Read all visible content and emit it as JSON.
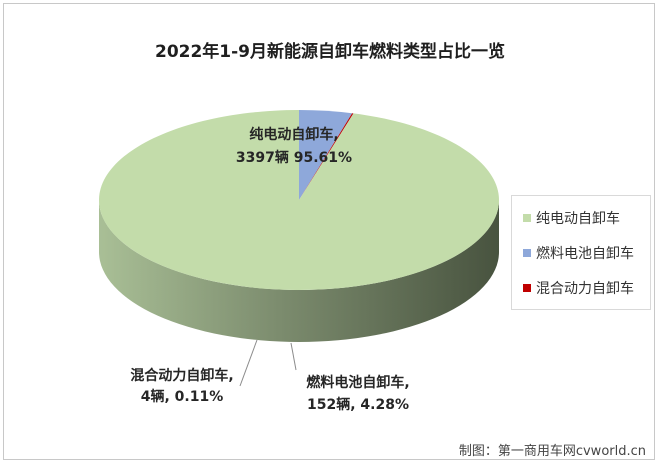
{
  "chart_data": {
    "type": "pie",
    "title": "2022年1-9月新能源自卸车燃料类型占比一览",
    "slices": [
      {
        "name": "纯电动自卸车",
        "value": 3397,
        "percent": 95.61,
        "label_line1": "纯电动自卸车,",
        "label_line2": "3397辆 95.61%",
        "color": "#c3dcaa"
      },
      {
        "name": "燃料电池自卸车",
        "value": 152,
        "percent": 4.28,
        "label_line1": "燃料电池自卸车,",
        "label_line2": "152辆, 4.28%",
        "color": "#8ea8da"
      },
      {
        "name": "混合动力自卸车",
        "value": 4,
        "percent": 0.11,
        "label_line1": "混合动力自卸车,",
        "label_line2": "4辆, 0.11%",
        "color": "#c00000"
      }
    ],
    "legend_position": "right"
  },
  "footer": {
    "credit": "制图：第一商用车网cvworld.cn"
  }
}
